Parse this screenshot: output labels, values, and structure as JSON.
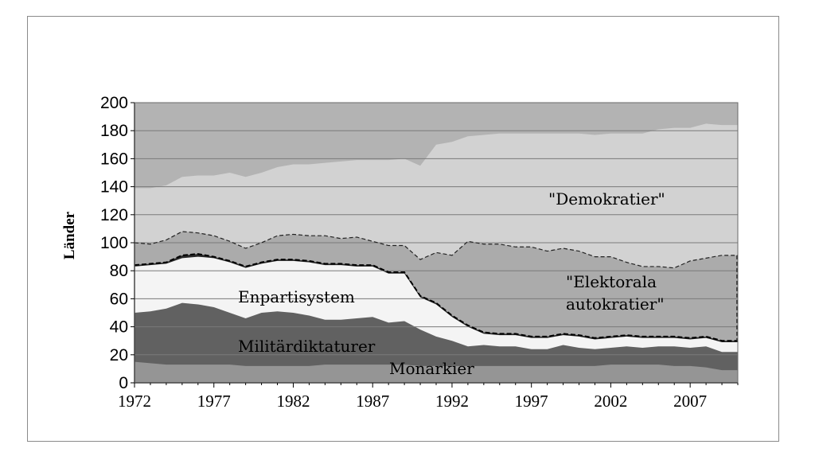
{
  "chart_data": {
    "type": "area",
    "stacked": true,
    "title": "",
    "xlabel": "",
    "ylabel": "Länder",
    "xlim": [
      1972,
      2010
    ],
    "ylim": [
      0,
      200
    ],
    "yticks": [
      0,
      20,
      40,
      60,
      80,
      100,
      120,
      140,
      160,
      180,
      200
    ],
    "xticks": [
      1972,
      1977,
      1982,
      1987,
      1992,
      1997,
      2002,
      2007
    ],
    "grid": "horizontal",
    "legend": "none (labels inside areas)",
    "x": [
      1972,
      1973,
      1974,
      1975,
      1976,
      1977,
      1978,
      1979,
      1980,
      1981,
      1982,
      1983,
      1984,
      1985,
      1986,
      1987,
      1988,
      1989,
      1990,
      1991,
      1992,
      1993,
      1994,
      1995,
      1996,
      1997,
      1998,
      1999,
      2000,
      2001,
      2002,
      2003,
      2004,
      2005,
      2006,
      2007,
      2008,
      2009,
      2010
    ],
    "series": [
      {
        "name": "Monarkier",
        "fill": "#959595",
        "cumulative_top": [
          15,
          14,
          13,
          13,
          13,
          13,
          13,
          12,
          12,
          12,
          12,
          12,
          13,
          13,
          13,
          13,
          13,
          13,
          12,
          12,
          12,
          12,
          12,
          12,
          12,
          12,
          12,
          12,
          12,
          12,
          13,
          13,
          13,
          13,
          12,
          12,
          11,
          9,
          9
        ]
      },
      {
        "name": "Militärdiktaturer",
        "fill": "#616161",
        "cumulative_top": [
          50,
          51,
          53,
          57,
          56,
          54,
          50,
          46,
          50,
          51,
          50,
          48,
          45,
          45,
          46,
          47,
          43,
          44,
          38,
          33,
          30,
          26,
          27,
          26,
          26,
          24,
          24,
          27,
          25,
          24,
          25,
          26,
          25,
          26,
          26,
          25,
          26,
          22,
          22
        ]
      },
      {
        "name": "Enpartisystem",
        "fill": "#f4f4f4",
        "cumulative_top": [
          83,
          84,
          85,
          89,
          90,
          89,
          86,
          82,
          85,
          87,
          87,
          86,
          84,
          84,
          83,
          83,
          78,
          78,
          61,
          56,
          47,
          40,
          35,
          34,
          34,
          32,
          32,
          34,
          33,
          31,
          32,
          33,
          32,
          32,
          32,
          31,
          32,
          29,
          29
        ]
      },
      {
        "name": "",
        "fill": "#2a2a2a",
        "cumulative_top": [
          84,
          85,
          86,
          91,
          92,
          90,
          87,
          83,
          86,
          88,
          88,
          87,
          85,
          85,
          84,
          84,
          79,
          79,
          62,
          57,
          48,
          41,
          36,
          35,
          35,
          33,
          33,
          35,
          34,
          32,
          33,
          34,
          33,
          33,
          33,
          32,
          33,
          30,
          30
        ]
      },
      {
        "name": "\"Elektorala autokratier\"",
        "fill": "#ababab",
        "cumulative_top": [
          100,
          99,
          102,
          108,
          107,
          105,
          101,
          96,
          100,
          105,
          106,
          105,
          105,
          103,
          104,
          101,
          98,
          98,
          88,
          93,
          91,
          101,
          99,
          99,
          97,
          97,
          94,
          96,
          94,
          90,
          90,
          86,
          83,
          83,
          82,
          87,
          89,
          91,
          91
        ]
      },
      {
        "name": "\"Demokratier\"",
        "fill": "#d2d2d2",
        "cumulative_top": [
          139,
          139,
          141,
          147,
          148,
          148,
          150,
          147,
          150,
          154,
          156,
          156,
          157,
          158,
          159,
          159,
          159,
          160,
          155,
          170,
          172,
          176,
          177,
          178,
          178,
          178,
          178,
          178,
          178,
          177,
          178,
          178,
          178,
          181,
          182,
          182,
          185,
          184,
          184
        ]
      }
    ],
    "background_fill": "#b3b3b3",
    "area_labels": {
      "demokratier": "\"Demokratier\"",
      "elektorala_line1": "\"Elektorala",
      "elektorala_line2": "autokratier\"",
      "enparti": "Enpartisystem",
      "militar": "Militärdiktaturer",
      "monarkier": "Monarkier"
    }
  }
}
